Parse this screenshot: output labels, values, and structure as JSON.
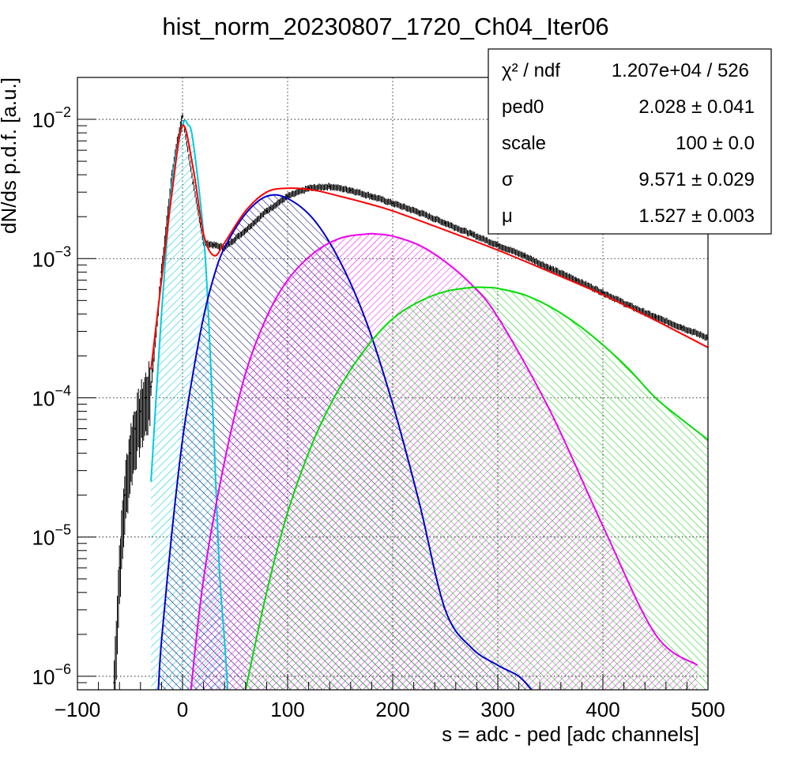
{
  "chart_data": {
    "type": "line",
    "title": "hist_norm_20230807_1720_Ch04_Iter06",
    "xlabel": "s = adc - ped [adc channels]",
    "ylabel": "dN/ds p.d.f. [a.u.]",
    "xlim": [
      -100,
      500
    ],
    "ylim": [
      8e-07,
      0.02
    ],
    "yscale": "log",
    "grid": true,
    "x_ticks": [
      "−100",
      "0",
      "100",
      "200",
      "300",
      "400",
      "500"
    ],
    "x_tick_values": [
      -100,
      0,
      100,
      200,
      300,
      400,
      500
    ],
    "y_ticks": [
      {
        "value": 0.01,
        "base": "10",
        "exp": "−2"
      },
      {
        "value": 0.001,
        "base": "10",
        "exp": "−3"
      },
      {
        "value": 0.0001,
        "base": "10",
        "exp": "−4"
      },
      {
        "value": 1e-05,
        "base": "10",
        "exp": "−5"
      },
      {
        "value": 1e-06,
        "base": "10",
        "exp": "−6"
      }
    ],
    "stats_box": {
      "position": "top-right",
      "rows": [
        {
          "label": "χ² / ndf",
          "value": "1.207e+04 / 526"
        },
        {
          "label": "ped0",
          "value": "2.028",
          "error": "0.041"
        },
        {
          "label": "scale",
          "value": "100",
          "error": "0.0"
        },
        {
          "label": "σ",
          "value": "9.571",
          "error": "0.029"
        },
        {
          "label": "μ",
          "value": "1.527",
          "error": "0.003"
        }
      ]
    },
    "data_points": {
      "x": [
        -65,
        -60,
        -55,
        -50,
        -45,
        -40,
        -35,
        -30,
        -20,
        -10,
        0,
        10,
        20,
        30,
        40,
        60,
        80,
        100,
        120,
        140,
        160,
        180,
        200,
        225,
        250,
        275,
        300,
        325,
        350,
        375,
        400,
        425,
        450,
        475,
        500
      ],
      "y": [
        9e-07,
        6e-06,
        2e-05,
        4e-05,
        6e-05,
        8e-05,
        0.0001,
        0.00012,
        0.0008,
        0.004,
        0.0105,
        0.0035,
        0.0013,
        0.00125,
        0.0012,
        0.0016,
        0.0022,
        0.0028,
        0.0032,
        0.0033,
        0.0031,
        0.0028,
        0.0025,
        0.00215,
        0.0018,
        0.0015,
        0.00125,
        0.00105,
        0.00085,
        0.0007,
        0.00057,
        0.00046,
        0.00038,
        0.00032,
        0.00027
      ]
    },
    "series": [
      {
        "color": "#ff0000",
        "role": "total fit",
        "x": [
          -30,
          -20,
          -10,
          0,
          10,
          20,
          30,
          40,
          60,
          80,
          100,
          125,
          150,
          175,
          200,
          250,
          300,
          350,
          400,
          450,
          500
        ],
        "y": [
          0.00016,
          0.0007,
          0.003,
          0.009,
          0.0045,
          0.0015,
          0.00105,
          0.0013,
          0.0022,
          0.003,
          0.0032,
          0.0031,
          0.0028,
          0.0025,
          0.0022,
          0.0016,
          0.00115,
          0.0008,
          0.00055,
          0.00036,
          0.00023
        ]
      },
      {
        "color": "#00ccdd",
        "role": "pedestal peak",
        "fill": "hatch",
        "x": [
          -30,
          -20,
          -10,
          0,
          5,
          10,
          20,
          25,
          30,
          35,
          40,
          43
        ],
        "y": [
          2.5e-05,
          0.0004,
          0.0035,
          0.009,
          0.0092,
          0.007,
          0.0015,
          0.00035,
          5e-05,
          6e-06,
          1.8e-06,
          8e-07
        ]
      },
      {
        "color": "#0000cc",
        "role": "1 photoelectron",
        "fill": "hatch",
        "x": [
          -23,
          -20,
          -10,
          0,
          10,
          20,
          30,
          40,
          60,
          80,
          100,
          125,
          150,
          175,
          200,
          225,
          250,
          275,
          300,
          320,
          332
        ],
        "y": [
          8e-07,
          1.8e-06,
          1.1e-05,
          5e-05,
          0.00015,
          0.00038,
          0.00075,
          0.0012,
          0.0021,
          0.0028,
          0.0027,
          0.0019,
          0.00095,
          0.00035,
          9e-05,
          1.8e-05,
          3e-06,
          1.6e-06,
          1.2e-06,
          1e-06,
          8e-07
        ]
      },
      {
        "color": "#ee00ee",
        "role": "2 photoelectrons",
        "fill": "hatch",
        "x": [
          8,
          20,
          40,
          60,
          80,
          100,
          125,
          150,
          175,
          185,
          200,
          225,
          250,
          275,
          300,
          350,
          400,
          450,
          490
        ],
        "y": [
          8e-07,
          5e-06,
          3.5e-05,
          0.00015,
          0.00038,
          0.0007,
          0.0011,
          0.0014,
          0.0015,
          0.0015,
          0.00145,
          0.00125,
          0.00095,
          0.00065,
          0.00038,
          8e-05,
          1.2e-05,
          2e-06,
          1.2e-06
        ]
      },
      {
        "color": "#00dd00",
        "role": "3 photoelectrons",
        "fill": "hatch",
        "x": [
          60,
          80,
          100,
          125,
          150,
          175,
          200,
          225,
          250,
          275,
          290,
          300,
          325,
          350,
          375,
          400,
          425,
          450,
          475,
          500
        ],
        "y": [
          8e-07,
          4e-06,
          1.5e-05,
          5e-05,
          0.00012,
          0.00023,
          0.00037,
          0.00049,
          0.00058,
          0.00062,
          0.00062,
          0.00061,
          0.00055,
          0.00045,
          0.00034,
          0.00024,
          0.00016,
          0.0001,
          7e-05,
          5e-05
        ]
      }
    ]
  }
}
